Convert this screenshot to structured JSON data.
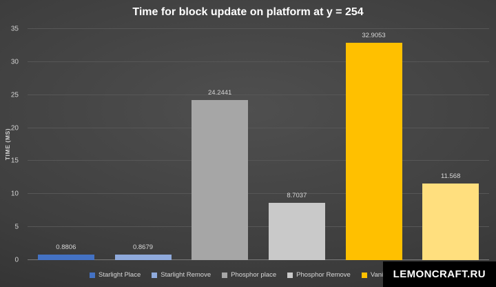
{
  "watermark": "LEMONCRAFT.RU",
  "chart_data": {
    "type": "bar",
    "title": "Time for block update on platform at y = 254",
    "ylabel": "TIME (MS)",
    "xlabel": "",
    "ylim": [
      0,
      35
    ],
    "yticks": [
      0,
      5,
      10,
      15,
      20,
      25,
      30,
      35
    ],
    "grid": true,
    "legend_position": "bottom",
    "categories": [
      "Starlight Place",
      "Starlight Remove",
      "Phosphor place",
      "Phosphor Remove",
      "Vanilla place",
      ""
    ],
    "values": [
      0.8806,
      0.8679,
      24.2441,
      8.7037,
      32.9053,
      11.568
    ],
    "value_labels": [
      "0.8806",
      "0.8679",
      "24.2441",
      "8.7037",
      "32.9053",
      "11.568"
    ],
    "colors": [
      "#4472C4",
      "#8FAADC",
      "#A6A6A6",
      "#C9C9C9",
      "#FFC000",
      "#FFDF7E"
    ]
  }
}
